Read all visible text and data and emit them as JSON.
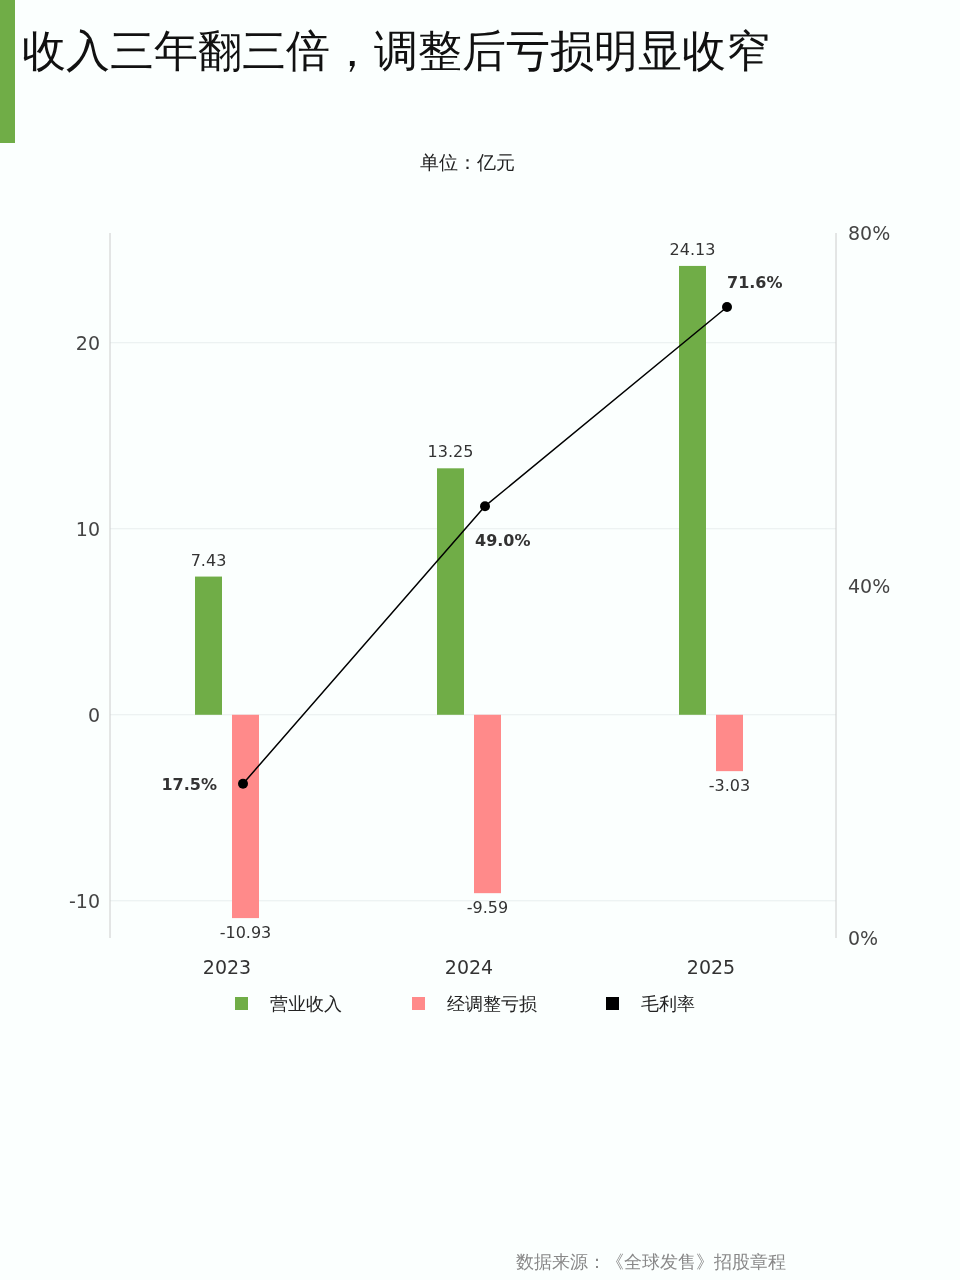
{
  "chart_data": {
    "type": "bar",
    "title": "收入三年翻三倍，调整后亏损明显收窄",
    "subtitle": "单位：亿元",
    "categories": [
      "2023",
      "2024",
      "2025"
    ],
    "series": [
      {
        "name": "营业收入",
        "color": "#70ad47",
        "values": [
          7.43,
          13.25,
          24.13
        ],
        "value_labels": [
          "7.43",
          "13.25",
          "24.13"
        ]
      },
      {
        "name": "经调整亏损",
        "color": "#ff8a8a",
        "values": [
          -10.93,
          -9.59,
          -3.03
        ],
        "value_labels": [
          "-10.93",
          "-9.59",
          "-3.03"
        ]
      },
      {
        "name": "毛利率",
        "type": "line",
        "axis": "y2",
        "color": "#000000",
        "marker": "circle",
        "values": [
          17.5,
          49.0,
          71.6
        ],
        "value_labels": [
          "17.5%",
          "49.0%",
          "71.6%"
        ]
      }
    ],
    "ylim": [
      -12,
      25.9
    ],
    "yticks": [
      -10,
      0,
      10,
      20
    ],
    "y2lim": [
      0,
      80
    ],
    "y2ticks": [
      {
        "value": 0,
        "label": "0%"
      },
      {
        "value": 40,
        "label": "40%"
      },
      {
        "value": 80,
        "label": "80%"
      }
    ],
    "grid": "y",
    "legend": "bottom",
    "annotations": [
      "数据来源：《全球发售》招股章程"
    ]
  }
}
